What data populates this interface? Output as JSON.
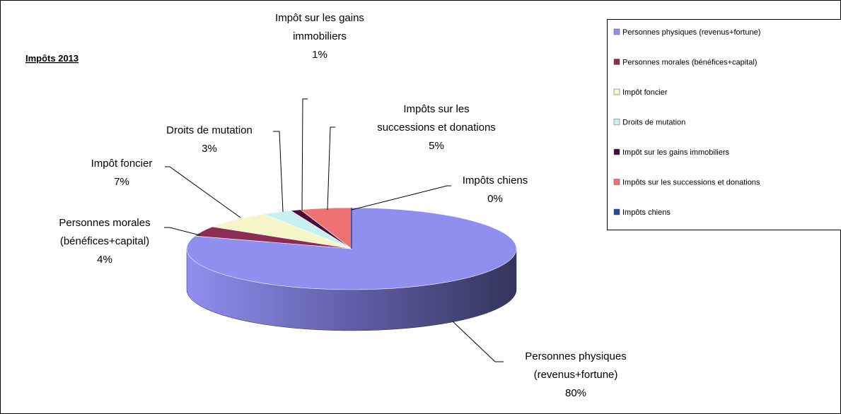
{
  "chart_data": {
    "type": "pie",
    "title": "Impôts 2013",
    "categories": [
      "Personnes physiques (revenus+fortune)",
      "Personnes morales (bénéfices+capital)",
      "Impôt foncier",
      "Droits de mutation",
      "Impôt sur les gains immobiliers",
      "Impôts sur les successions et donations",
      "Impôts chiens"
    ],
    "values": [
      80,
      4,
      7,
      3,
      1,
      5,
      0
    ],
    "value_labels": [
      "80%",
      "4%",
      "7%",
      "3%",
      "1%",
      "5%",
      "0%"
    ],
    "colors": [
      "#8f8fef",
      "#8b2c52",
      "#f5f5c8",
      "#c8f0f0",
      "#4a0a3e",
      "#ef7272",
      "#1f4f9f"
    ],
    "legend": "right"
  }
}
